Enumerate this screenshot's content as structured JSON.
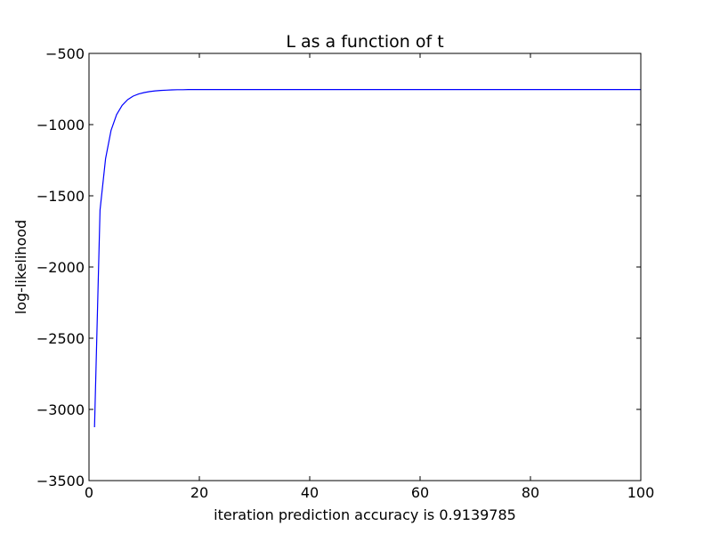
{
  "chart_data": {
    "type": "line",
    "title": "L as a function of t",
    "xlabel": "iteration prediction accuracy is 0.9139785",
    "ylabel": "log-likelihood",
    "xlim": [
      0,
      100
    ],
    "ylim": [
      -3500,
      -500
    ],
    "xticks": [
      0,
      20,
      40,
      60,
      80,
      100
    ],
    "yticks": [
      -3500,
      -3000,
      -2500,
      -2000,
      -1500,
      -1000,
      -500
    ],
    "xtick_labels": [
      "0",
      "20",
      "40",
      "60",
      "80",
      "100"
    ],
    "ytick_labels": [
      "−3500",
      "−3000",
      "−2500",
      "−2000",
      "−1500",
      "−1000",
      "−500"
    ],
    "grid": false,
    "legend": "none",
    "series": [
      {
        "color": "#0000ff",
        "x": [
          1,
          2,
          3,
          4,
          5,
          6,
          7,
          8,
          9,
          10,
          11,
          12,
          13,
          14,
          15,
          16,
          17,
          18,
          19,
          20,
          25,
          30,
          40,
          50,
          60,
          70,
          80,
          90,
          100
        ],
        "y": [
          -3125,
          -1600,
          -1240,
          -1040,
          -930,
          -865,
          -825,
          -800,
          -785,
          -775,
          -768,
          -763,
          -760,
          -758,
          -756,
          -755,
          -755,
          -754,
          -754,
          -754,
          -754,
          -754,
          -754,
          -754,
          -754,
          -754,
          -754,
          -754,
          -754
        ]
      }
    ]
  }
}
